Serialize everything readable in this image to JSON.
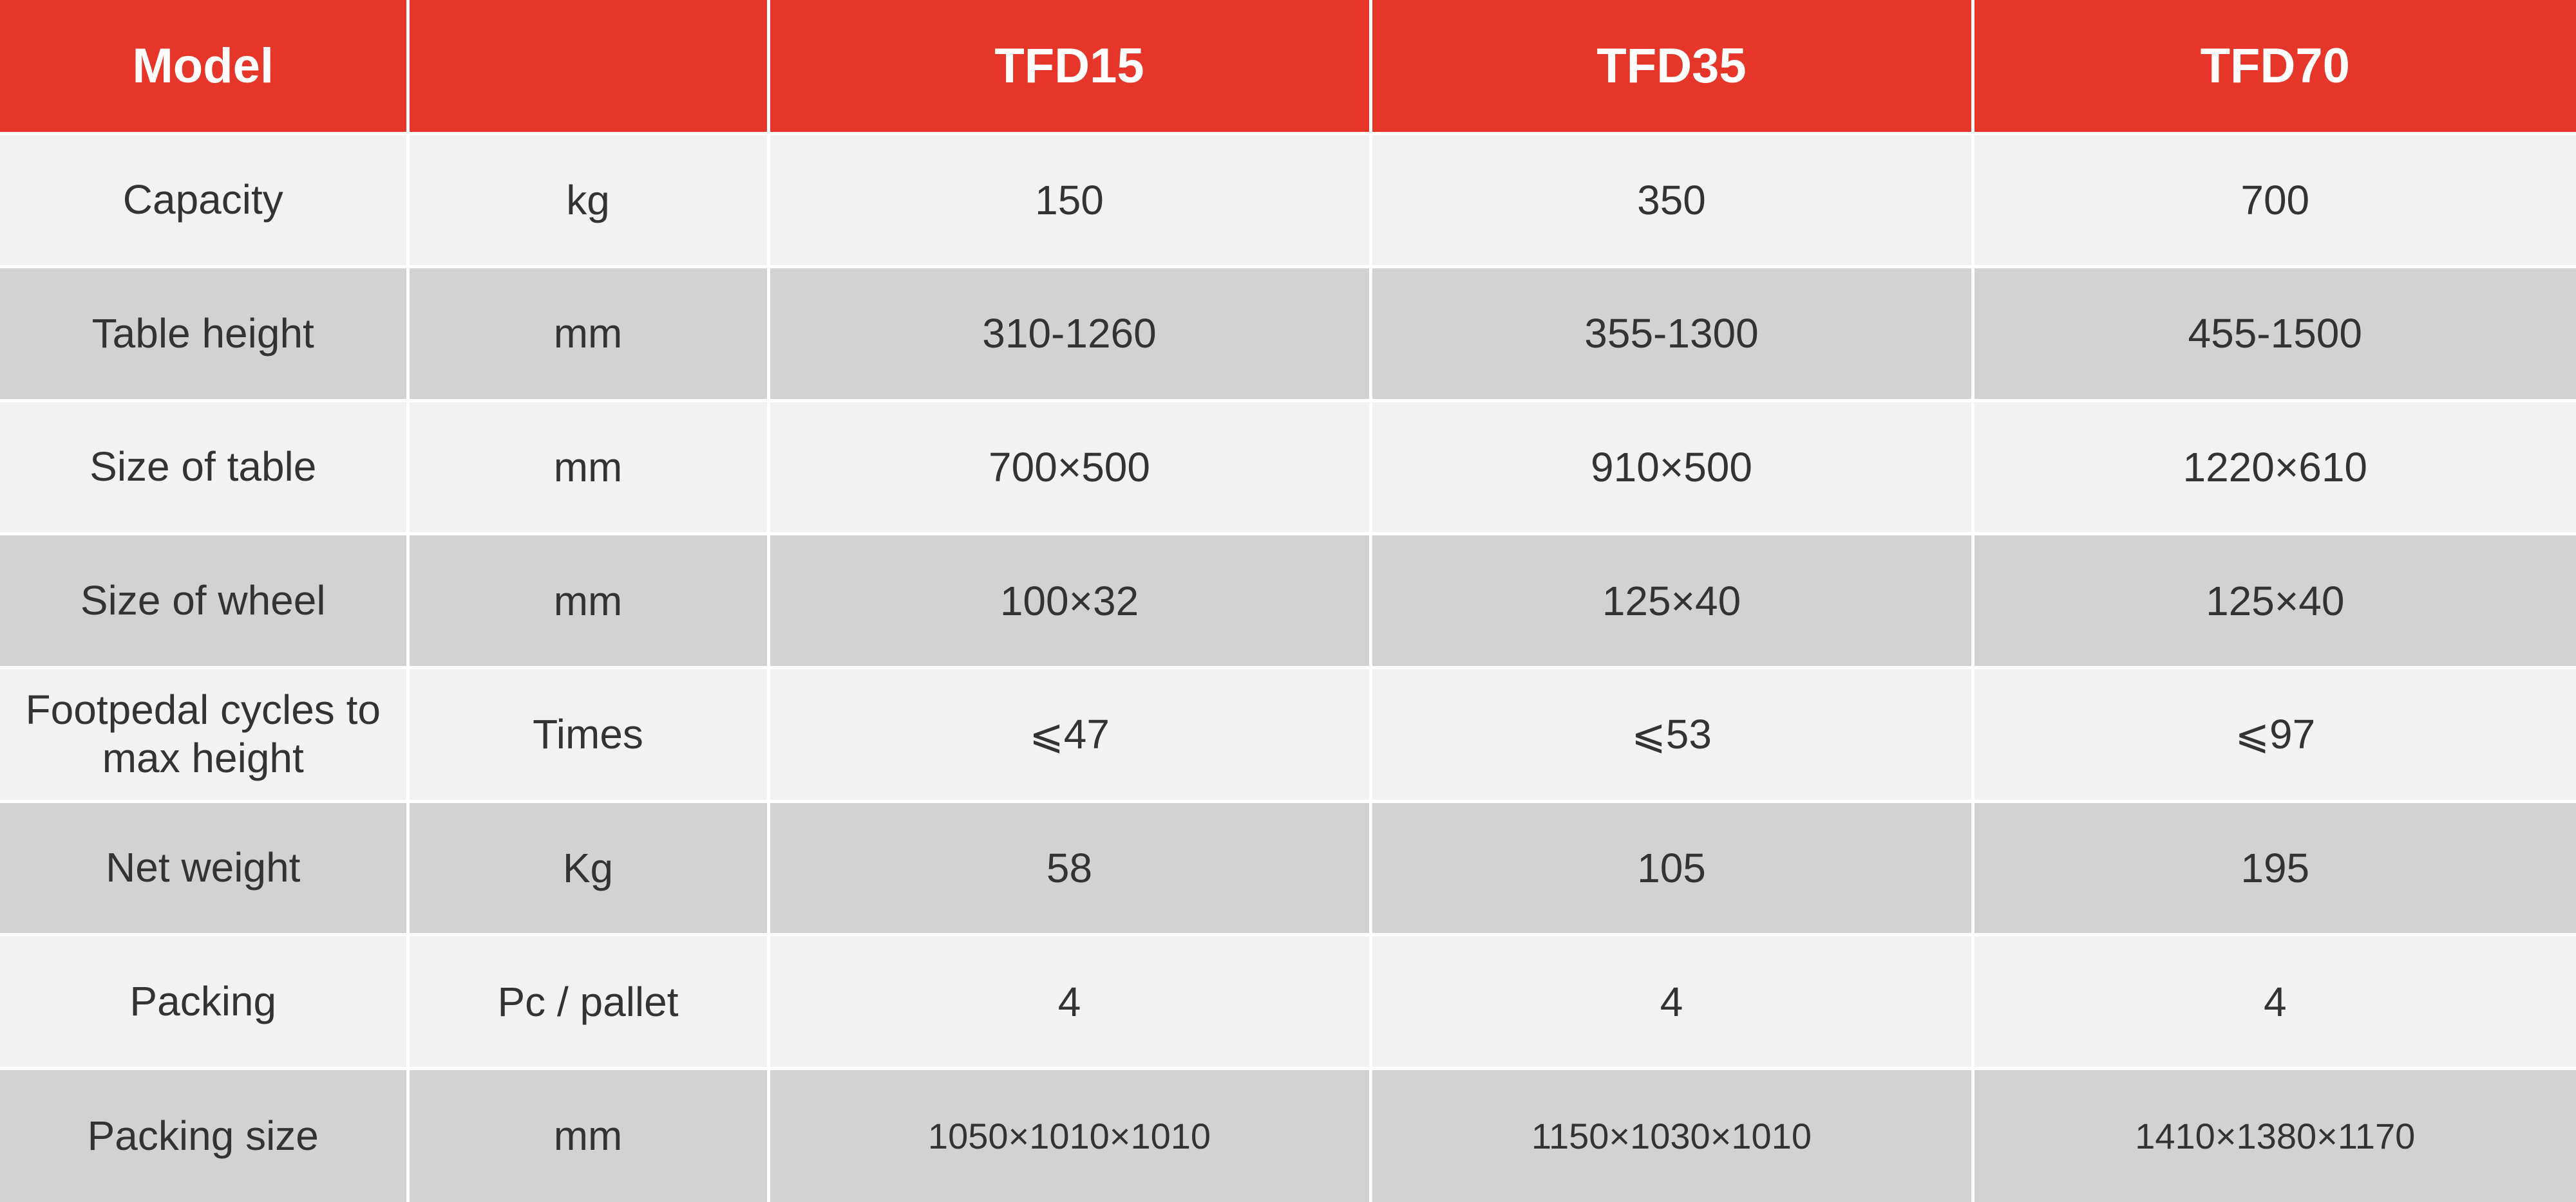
{
  "header": {
    "model_label": "Model",
    "unit_label": "",
    "models": [
      "TFD15",
      "TFD35",
      "TFD70"
    ]
  },
  "rows": [
    {
      "label": "Capacity",
      "unit": "kg",
      "values": [
        "150",
        "350",
        "700"
      ]
    },
    {
      "label": "Table height",
      "unit": "mm",
      "values": [
        "310-1260",
        "355-1300",
        "455-1500"
      ]
    },
    {
      "label": "Size of table",
      "unit": "mm",
      "values": [
        "700×500",
        "910×500",
        "1220×610"
      ]
    },
    {
      "label": "Size of wheel",
      "unit": "mm",
      "values": [
        "100×32",
        "125×40",
        "125×40"
      ]
    },
    {
      "label": "Footpedal cycles to max height",
      "unit": "Times",
      "values": [
        "⩽47",
        "⩽53",
        "⩽97"
      ]
    },
    {
      "label": "Net weight",
      "unit": "Kg",
      "values": [
        "58",
        "105",
        "195"
      ]
    },
    {
      "label": "Packing",
      "unit": "Pc / pallet",
      "values": [
        "4",
        "4",
        "4"
      ]
    },
    {
      "label": "Packing size",
      "unit": "mm",
      "values": [
        "1050×1010×1010",
        "1150×1030×1010",
        "1410×1380×1170"
      ]
    }
  ],
  "colors": {
    "header_bg": "#e53629",
    "row_light": "#f2f2f2",
    "row_dark": "#d2d2d2",
    "text": "#333333"
  }
}
